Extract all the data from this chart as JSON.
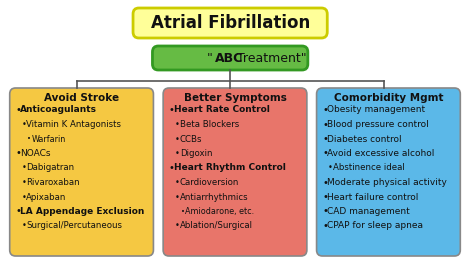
{
  "title": "Atrial Fibrillation",
  "subtitle_bold": "ABC",
  "subtitle_rest": " Treatment\"",
  "subtitle_prefix": "\"",
  "title_bg": "#FFFF99",
  "subtitle_bg": "#66BB44",
  "bg_color": "#FFFFFF",
  "col1_bg": "#F5C842",
  "col2_bg": "#E8756A",
  "col3_bg": "#5BB8E8",
  "col1_title": "Avoid Stroke",
  "col2_title": "Better Symptoms",
  "col3_title": "Comorbidity Mgmt",
  "col1_lines": [
    {
      "text": "Anticoagulants",
      "level": 0,
      "bold": true
    },
    {
      "text": "Vitamin K Antagonists",
      "level": 1,
      "bold": false
    },
    {
      "text": "Warfarin",
      "level": 2,
      "bold": false
    },
    {
      "text": "NOACs",
      "level": 0,
      "bold": false
    },
    {
      "text": "Dabigatran",
      "level": 1,
      "bold": false
    },
    {
      "text": "Rivaroxaban",
      "level": 1,
      "bold": false
    },
    {
      "text": "Apixaban",
      "level": 1,
      "bold": false
    },
    {
      "text": "LA Appendage Exclusion",
      "level": 0,
      "bold": true
    },
    {
      "text": "Surgical/Percutaneous",
      "level": 1,
      "bold": false
    }
  ],
  "col2_lines": [
    {
      "text": "Heart Rate Control",
      "level": 0,
      "bold": true
    },
    {
      "text": "Beta Blockers",
      "level": 1,
      "bold": false
    },
    {
      "text": "CCBs",
      "level": 1,
      "bold": false
    },
    {
      "text": "Digoxin",
      "level": 1,
      "bold": false
    },
    {
      "text": "Heart Rhythm Control",
      "level": 0,
      "bold": true
    },
    {
      "text": "Cardioversion",
      "level": 1,
      "bold": false
    },
    {
      "text": "Antiarrhythmics",
      "level": 1,
      "bold": false
    },
    {
      "text": "Amiodarone, etc.",
      "level": 2,
      "bold": false
    },
    {
      "text": "Ablation/Surgical",
      "level": 1,
      "bold": false
    }
  ],
  "col3_lines": [
    {
      "text": "Obesity management",
      "level": 0,
      "bold": false
    },
    {
      "text": "Blood pressure control",
      "level": 0,
      "bold": false
    },
    {
      "text": "Diabetes control",
      "level": 0,
      "bold": false
    },
    {
      "text": "Avoid excessive alcohol",
      "level": 0,
      "bold": false
    },
    {
      "text": "Abstinence ideal",
      "level": 1,
      "bold": false
    },
    {
      "text": "Moderate physical activity",
      "level": 0,
      "bold": false
    },
    {
      "text": "Heart failure control",
      "level": 0,
      "bold": false
    },
    {
      "text": "CAD management",
      "level": 0,
      "bold": false
    },
    {
      "text": "CPAP for sleep apnea",
      "level": 0,
      "bold": false
    }
  ]
}
